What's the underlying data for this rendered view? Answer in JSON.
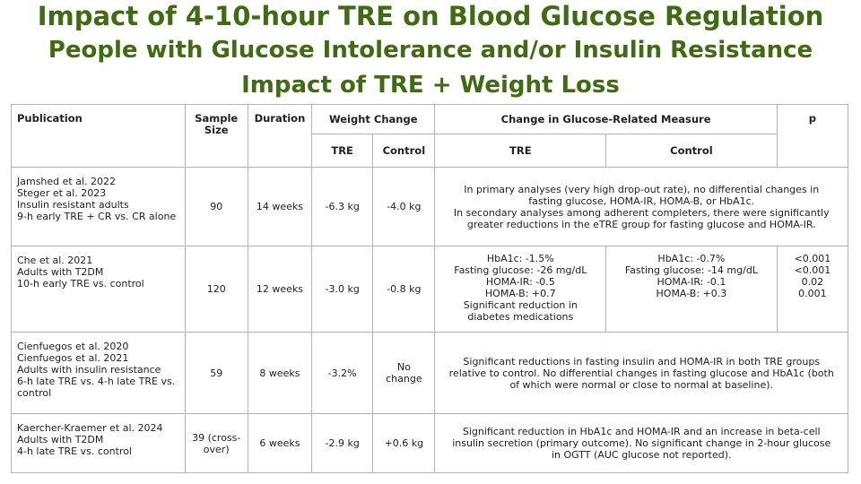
{
  "titles": {
    "line1": "Impact of 4-10-hour TRE on Blood Glucose Regulation",
    "line2": "People with Glucose Intolerance and/or Insulin Resistance",
    "line3": "Impact of TRE + Weight Loss"
  },
  "headers": {
    "publication": "Publication",
    "sample_size": "Sample Size",
    "duration": "Duration",
    "weight_change": "Weight Change",
    "glucose_change": "Change in Glucose-Related Measure",
    "p": "p",
    "tre": "TRE",
    "control": "Control"
  },
  "rows": [
    {
      "publication": [
        "Jamshed et al. 2022",
        "Steger et al. 2023",
        "Insulin resistant adults",
        "9-h early TRE + CR vs. CR alone"
      ],
      "sample_size": "90",
      "duration": "14 weeks",
      "weight_tre": "-6.3 kg",
      "weight_control": "-4.0 kg",
      "glucose_combined": [
        "In primary analyses (very high drop-out rate), no differential changes in fasting glucose, HOMA-IR, HOMA-B, or HbA1c.",
        "In secondary analyses among adherent completers, there were significantly greater reductions in the eTRE group for fasting glucose and HOMA-IR."
      ]
    },
    {
      "publication": [
        "Che et al. 2021",
        "Adults with T2DM",
        "10-h early TRE vs. control"
      ],
      "sample_size": "120",
      "duration": "12 weeks",
      "weight_tre": "-3.0 kg",
      "weight_control": "-0.8 kg",
      "glucose_tre": [
        "HbA1c: -1.5%",
        "Fasting glucose: -26 mg/dL",
        "HOMA-IR: -0.5",
        "HOMA-B: +0.7",
        "Significant reduction in diabetes medications"
      ],
      "glucose_control": [
        "HbA1c: -0.7%",
        "Fasting glucose: -14 mg/dL",
        "HOMA-IR: -0.1",
        "HOMA-B: +0.3"
      ],
      "p_values": [
        "<0.001",
        "<0.001",
        "0.02",
        "0.001"
      ]
    },
    {
      "publication": [
        "Cienfuegos et al. 2020",
        "Cienfuegos et al. 2021",
        "Adults with insulin resistance",
        "6-h late TRE vs. 4-h late TRE vs. control"
      ],
      "sample_size": "59",
      "duration": "8 weeks",
      "weight_tre": "-3.2%",
      "weight_control": "No change",
      "glucose_combined": [
        "Significant reductions in fasting insulin and HOMA-IR in both TRE groups relative to control. No differential changes in fasting glucose and HbA1c (both of which were normal or close to normal at baseline)."
      ]
    },
    {
      "publication": [
        "Kaercher-Kraemer et al. 2024",
        "Adults with T2DM",
        "4-h late TRE vs. control"
      ],
      "sample_size": "39 (cross-over)",
      "duration": "6 weeks",
      "weight_tre": "-2.9 kg",
      "weight_control": "+0.6 kg",
      "glucose_combined": [
        "Significant reduction in HbA1c and HOMA-IR and an increase in beta-cell insulin secretion (primary outcome). No significant change in 2-hour glucose in OGTT (AUC glucose not reported)."
      ]
    }
  ]
}
